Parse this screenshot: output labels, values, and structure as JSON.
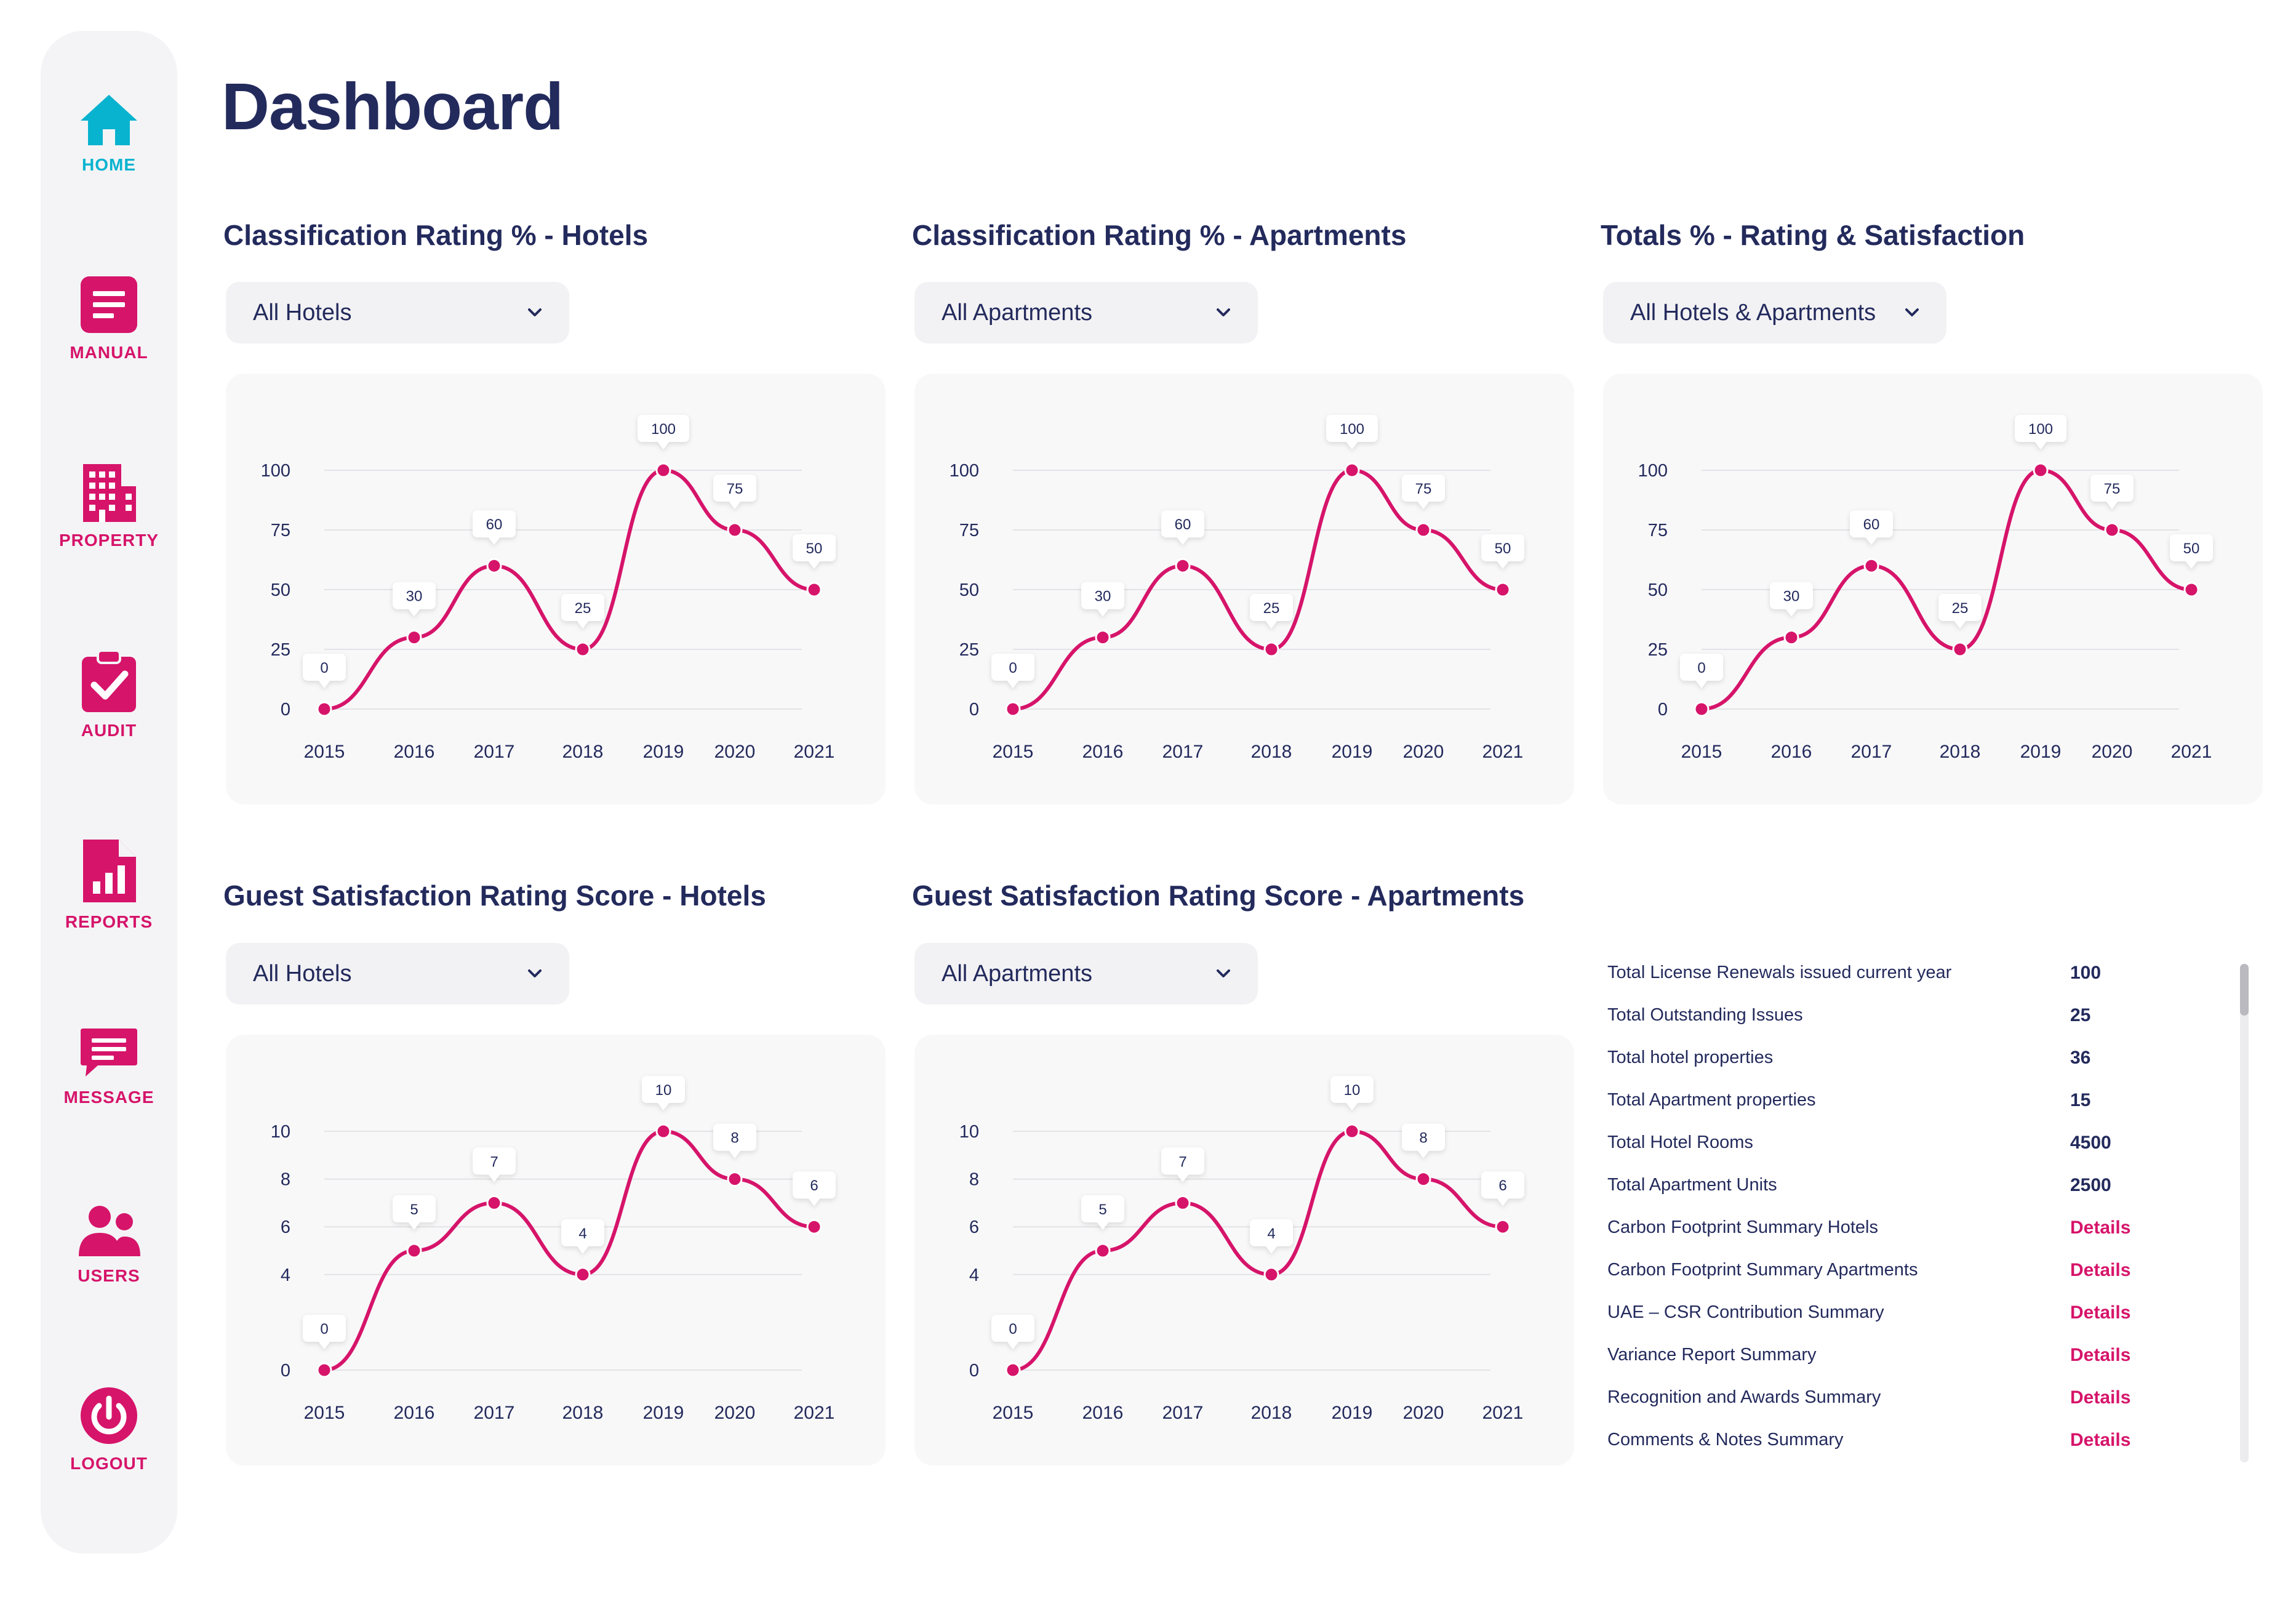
{
  "nav": {
    "items": [
      {
        "label": "HOME",
        "icon": "home-icon",
        "active": true
      },
      {
        "label": "MANUAL",
        "icon": "manual-icon",
        "active": false
      },
      {
        "label": "PROPERTY",
        "icon": "building-icon",
        "active": false
      },
      {
        "label": "AUDIT",
        "icon": "clipboard-check-icon",
        "active": false
      },
      {
        "label": "REPORTS",
        "icon": "report-icon",
        "active": false
      },
      {
        "label": "MESSAGE",
        "icon": "message-icon",
        "active": false
      },
      {
        "label": "USERS",
        "icon": "users-icon",
        "active": false
      },
      {
        "label": "LOGOUT",
        "icon": "power-icon",
        "active": false
      }
    ]
  },
  "page": {
    "title": "Dashboard"
  },
  "colors": {
    "accent": "#d6146a",
    "active": "#08b3cf",
    "text": "#232a5c"
  },
  "panels": [
    {
      "title": "Classification Rating % - Hotels",
      "filter": "All Hotels"
    },
    {
      "title": "Classification Rating % - Apartments",
      "filter": "All Apartments"
    },
    {
      "title": "Totals % - Rating & Satisfaction",
      "filter": "All Hotels & Apartments"
    },
    {
      "title": "Guest Satisfaction Rating Score - Hotels",
      "filter": "All Hotels"
    },
    {
      "title": "Guest Satisfaction Rating Score - Apartments",
      "filter": "All Apartments"
    }
  ],
  "chart_data": [
    {
      "type": "line",
      "x": [
        "2015",
        "2016",
        "2017",
        "2018",
        "2019",
        "2020",
        "2021"
      ],
      "values": [
        0,
        30,
        60,
        25,
        100,
        75,
        50
      ],
      "yticks": [
        0,
        25,
        50,
        75,
        100
      ],
      "ylim": [
        0,
        100
      ],
      "grid": true
    },
    {
      "type": "line",
      "x": [
        "2015",
        "2016",
        "2017",
        "2018",
        "2019",
        "2020",
        "2021"
      ],
      "values": [
        0,
        30,
        60,
        25,
        100,
        75,
        50
      ],
      "yticks": [
        0,
        25,
        50,
        75,
        100
      ],
      "ylim": [
        0,
        100
      ],
      "grid": true
    },
    {
      "type": "line",
      "x": [
        "2015",
        "2016",
        "2017",
        "2018",
        "2019",
        "2020",
        "2021"
      ],
      "values": [
        0,
        30,
        60,
        25,
        100,
        75,
        50
      ],
      "yticks": [
        0,
        25,
        50,
        75,
        100
      ],
      "ylim": [
        0,
        100
      ],
      "grid": true
    },
    {
      "type": "line",
      "x": [
        "2015",
        "2016",
        "2017",
        "2018",
        "2019",
        "2020",
        "2021"
      ],
      "values": [
        0,
        5,
        7,
        4,
        10,
        8,
        6
      ],
      "yticks": [
        0,
        4,
        6,
        8,
        10
      ],
      "ylim": [
        0,
        10
      ],
      "grid": true
    },
    {
      "type": "line",
      "x": [
        "2015",
        "2016",
        "2017",
        "2018",
        "2019",
        "2020",
        "2021"
      ],
      "values": [
        0,
        5,
        7,
        4,
        10,
        8,
        6
      ],
      "yticks": [
        0,
        4,
        6,
        8,
        10
      ],
      "ylim": [
        0,
        10
      ],
      "grid": true
    }
  ],
  "summary": {
    "rows": [
      {
        "label": "Total License Renewals issued current year",
        "value": "100"
      },
      {
        "label": "Total Outstanding Issues",
        "value": "25"
      },
      {
        "label": "Total hotel properties",
        "value": "36"
      },
      {
        "label": "Total Apartment properties",
        "value": "15"
      },
      {
        "label": "Total Hotel Rooms",
        "value": "4500"
      },
      {
        "label": "Total Apartment Units",
        "value": "2500"
      },
      {
        "label": "Carbon Footprint Summary Hotels",
        "link": "Details"
      },
      {
        "label": "Carbon Footprint Summary Apartments",
        "link": "Details"
      },
      {
        "label": "UAE – CSR Contribution Summary",
        "link": "Details"
      },
      {
        "label": "Variance Report Summary",
        "link": "Details"
      },
      {
        "label": "Recognition and Awards Summary",
        "link": "Details"
      },
      {
        "label": "Comments & Notes Summary",
        "link": "Details"
      }
    ]
  }
}
